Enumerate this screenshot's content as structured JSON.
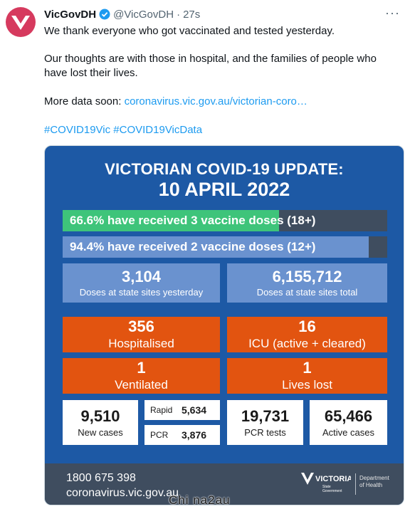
{
  "tweet": {
    "display_name": "VicGovDH",
    "handle": "@VicGovDH",
    "separator": "·",
    "time": "27s",
    "more_label": "···",
    "line1": "We thank everyone who got vaccinated and tested yesterday.",
    "line2a": "Our thoughts are with those in hospital, and the families of people who",
    "line2b": "have lost their lives.",
    "more_data_prefix": "More data soon:",
    "link": "coronavirus.vic.gov.au/victorian-coro…",
    "hashtag1": "#COVID19Vic",
    "hashtag2": "#COVID19VicData"
  },
  "card": {
    "title_line1": "VICTORIAN COVID-19 UPDATE:",
    "title_line2": "10 APRIL 2022",
    "bar1": {
      "text": "66.6% have received 3 vaccine doses (18+)",
      "fraction": 0.666,
      "color": "#3ec47a"
    },
    "bar2": {
      "text": "94.4% have received 2 vaccine doses (12+)",
      "fraction": 0.944,
      "color": "#6a92cf"
    },
    "doses_yesterday": {
      "value": "3,104",
      "label": "Doses at state sites yesterday"
    },
    "doses_total": {
      "value": "6,155,712",
      "label": "Doses at state sites total"
    },
    "hospitalised": {
      "value": "356",
      "label": "Hospitalised"
    },
    "icu": {
      "value": "16",
      "label": "ICU (active + cleared)"
    },
    "ventilated": {
      "value": "1",
      "label": "Ventilated"
    },
    "lives_lost": {
      "value": "1",
      "label": "Lives lost"
    },
    "new_cases": {
      "value": "9,510",
      "label": "New cases"
    },
    "rapid": {
      "label": "Rapid",
      "value": "5,634"
    },
    "pcr": {
      "label": "PCR",
      "value": "3,876"
    },
    "pcr_tests": {
      "value": "19,731",
      "label": "PCR tests"
    },
    "active_cases": {
      "value": "65,466",
      "label": "Active cases"
    },
    "footer_phone": "1800 675 398",
    "footer_url": "coronavirus.vic.gov.au",
    "logo_text": "VICTORIA",
    "logo_sub1": "State",
    "logo_sub2": "Government",
    "dept_line1": "Department",
    "dept_line2": "of Health"
  },
  "subtitle": "Chi na2au",
  "colors": {
    "accent_link": "#1d9bf0",
    "card_bg": "#1d59a5",
    "orange": "#e25410",
    "footer": "#3f4d5f"
  }
}
